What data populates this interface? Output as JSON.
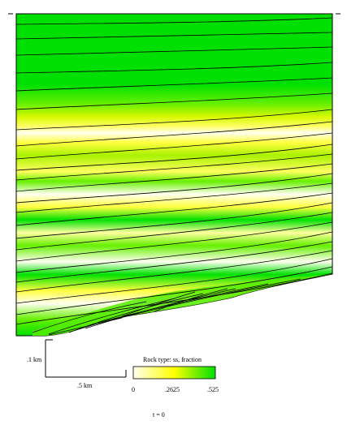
{
  "scale_bar": {
    "vertical_label": ".1 km",
    "horizontal_label": ".5 km"
  },
  "legend": {
    "title": "Rock type: ss, fraction",
    "ticks": [
      "0",
      ".2625",
      ".525"
    ],
    "min": 0,
    "max": 0.525,
    "colors": [
      "#fffff0",
      "#ffff00",
      "#00e000"
    ]
  },
  "time_label": "t = 0",
  "colors": {
    "green": "#00e000",
    "light_green": "#66f000",
    "yellow_green": "#c8f500",
    "yellow": "#ffff00",
    "pale_yellow": "#ffffa0",
    "white": "#fffff0",
    "line": "#000000"
  }
}
